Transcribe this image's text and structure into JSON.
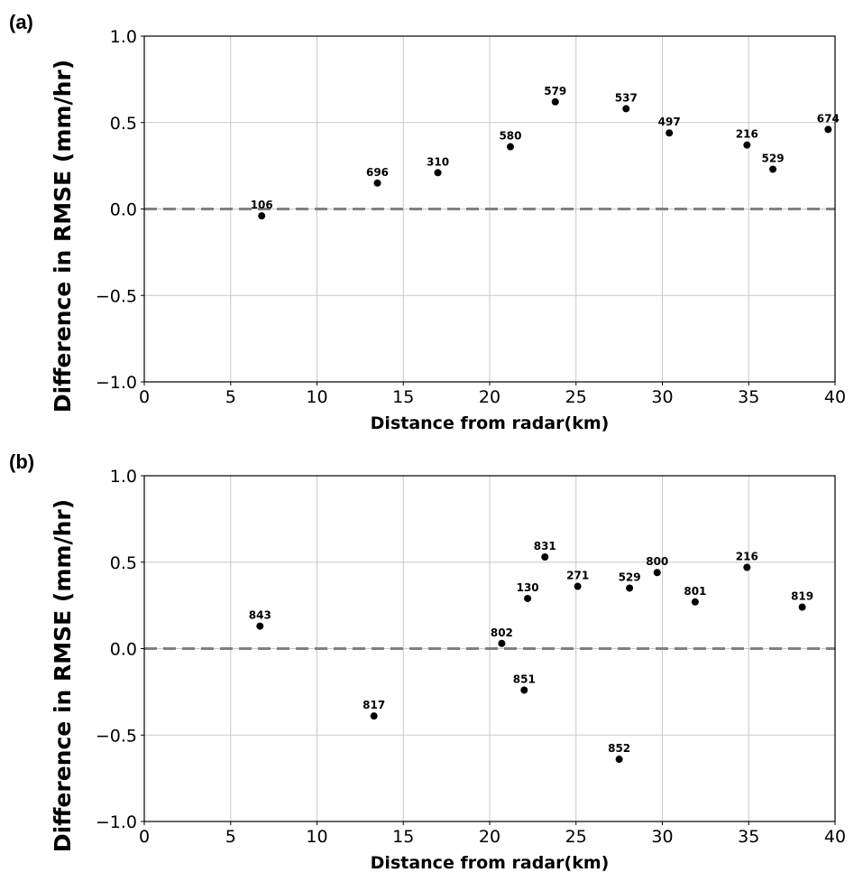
{
  "colors": {
    "marker": "#000000",
    "zero_line": "#808080",
    "grid": "#c8c8c8"
  },
  "chart_data": [
    {
      "type": "scatter",
      "panel_label": "(a)",
      "xlabel": "Distance from radar(km)",
      "ylabel": "Difference in RMSE (mm/hr)",
      "xlim": [
        0,
        40
      ],
      "ylim": [
        -1.0,
        1.0
      ],
      "xticks": [
        0,
        5,
        10,
        15,
        20,
        25,
        30,
        35,
        40
      ],
      "yticks": [
        1.0,
        0.5,
        0.0,
        -0.5,
        -1.0
      ],
      "ytick_labels": [
        "1.0",
        "0.5",
        "0.0",
        "−0.5",
        "−1.0"
      ],
      "grid": true,
      "reference_line": {
        "y": 0.0,
        "style": "dashed"
      },
      "points": [
        {
          "x": 6.8,
          "y": -0.04,
          "label": "106"
        },
        {
          "x": 13.5,
          "y": 0.15,
          "label": "696"
        },
        {
          "x": 17.0,
          "y": 0.21,
          "label": "310"
        },
        {
          "x": 21.2,
          "y": 0.36,
          "label": "580"
        },
        {
          "x": 23.8,
          "y": 0.62,
          "label": "579"
        },
        {
          "x": 27.9,
          "y": 0.58,
          "label": "537"
        },
        {
          "x": 30.4,
          "y": 0.44,
          "label": "497"
        },
        {
          "x": 34.9,
          "y": 0.37,
          "label": "216"
        },
        {
          "x": 36.4,
          "y": 0.23,
          "label": "529"
        },
        {
          "x": 39.6,
          "y": 0.46,
          "label": "674"
        }
      ]
    },
    {
      "type": "scatter",
      "panel_label": "(b)",
      "xlabel": "Distance from radar(km)",
      "ylabel": "Difference in RMSE (mm/hr)",
      "xlim": [
        0,
        40
      ],
      "ylim": [
        -1.0,
        1.0
      ],
      "xticks": [
        0,
        5,
        10,
        15,
        20,
        25,
        30,
        35,
        40
      ],
      "yticks": [
        1.0,
        0.5,
        0.0,
        -0.5,
        -1.0
      ],
      "ytick_labels": [
        "1.0",
        "0.5",
        "0.0",
        "−0.5",
        "−1.0"
      ],
      "grid": true,
      "reference_line": {
        "y": 0.0,
        "style": "dashed"
      },
      "points": [
        {
          "x": 6.7,
          "y": 0.13,
          "label": "843"
        },
        {
          "x": 13.3,
          "y": -0.39,
          "label": "817"
        },
        {
          "x": 20.7,
          "y": 0.03,
          "label": "802"
        },
        {
          "x": 22.0,
          "y": -0.24,
          "label": "851"
        },
        {
          "x": 22.2,
          "y": 0.29,
          "label": "130"
        },
        {
          "x": 23.2,
          "y": 0.53,
          "label": "831"
        },
        {
          "x": 25.1,
          "y": 0.36,
          "label": "271"
        },
        {
          "x": 27.5,
          "y": -0.64,
          "label": "852"
        },
        {
          "x": 28.1,
          "y": 0.35,
          "label": "529"
        },
        {
          "x": 29.7,
          "y": 0.44,
          "label": "800"
        },
        {
          "x": 31.9,
          "y": 0.27,
          "label": "801"
        },
        {
          "x": 34.9,
          "y": 0.47,
          "label": "216"
        },
        {
          "x": 38.1,
          "y": 0.24,
          "label": "819"
        }
      ]
    }
  ]
}
